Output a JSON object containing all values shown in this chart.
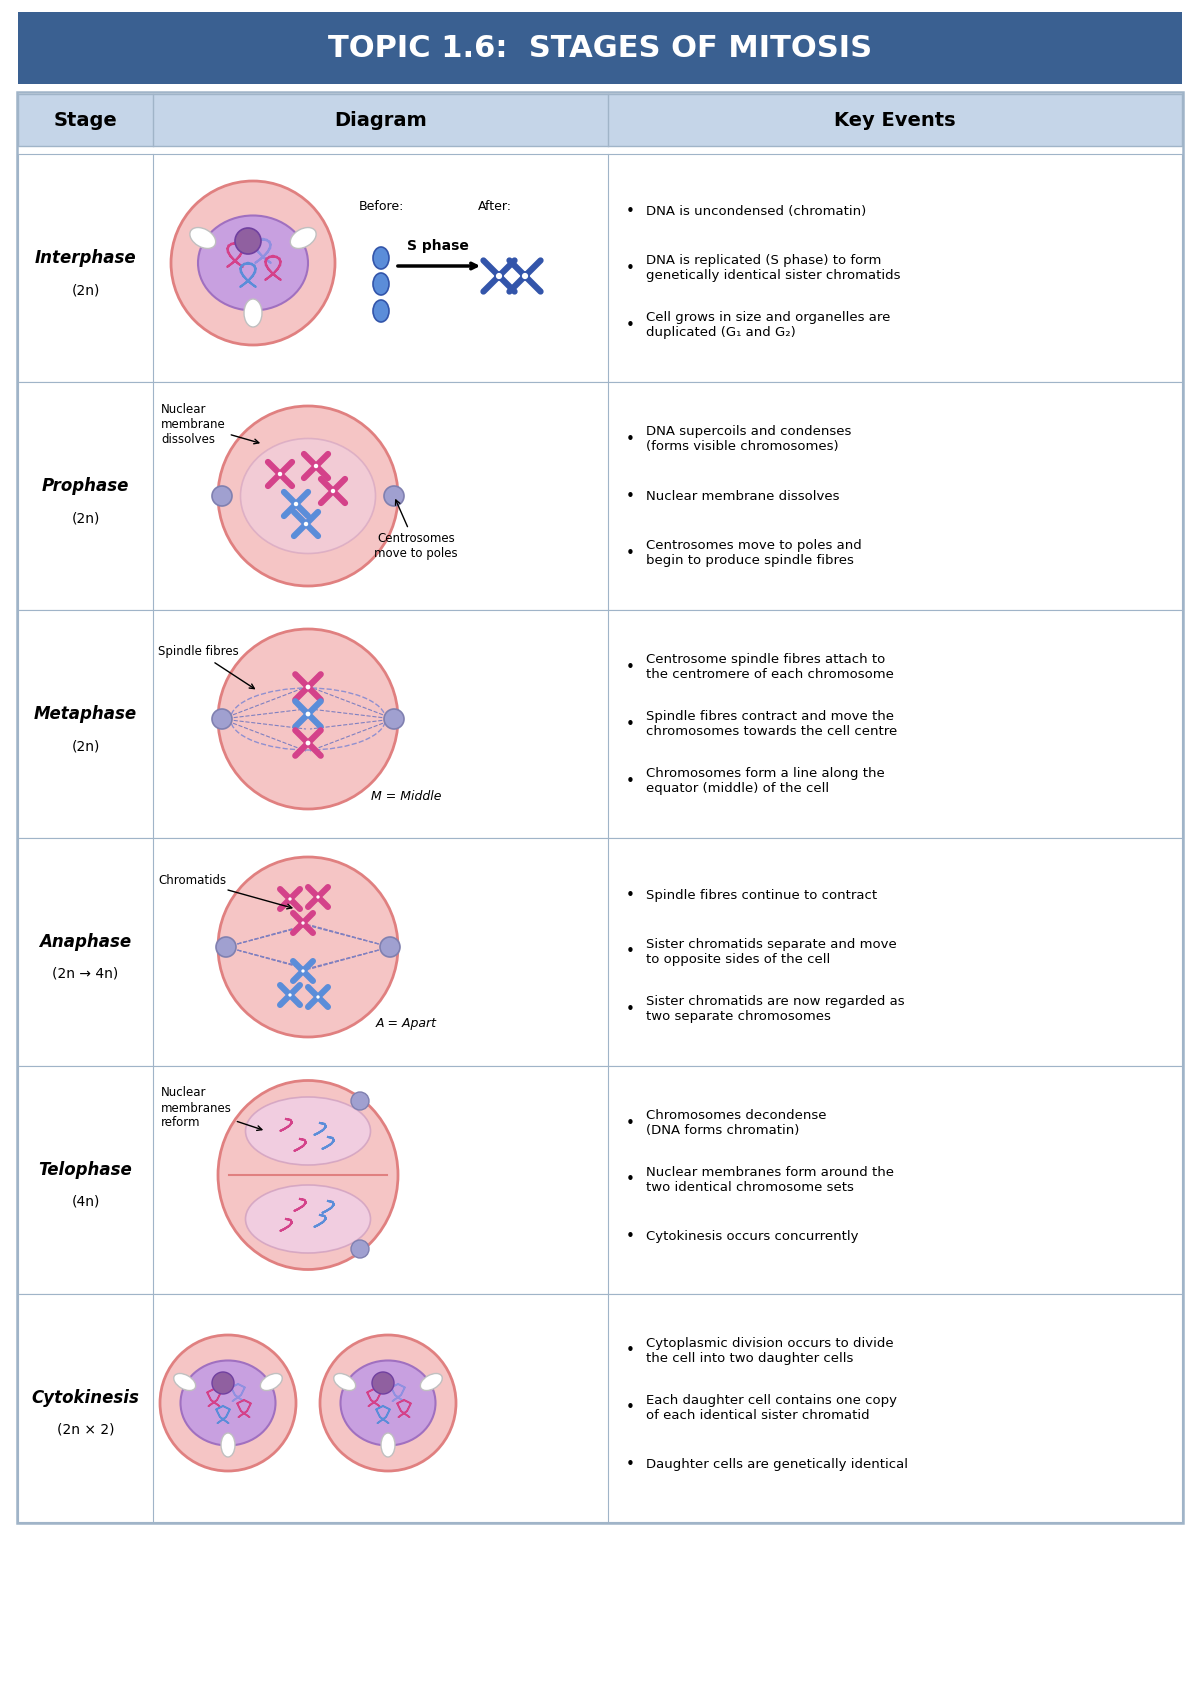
{
  "title": "TOPIC 1.6:  STAGES OF MITOSIS",
  "title_bg": "#3a6091",
  "title_color": "white",
  "header_bg": "#c5d5e8",
  "row_bg": "white",
  "border_color": "#a0b4c8",
  "col_headers": [
    "Stage",
    "Diagram",
    "Key Events"
  ],
  "stages": [
    {
      "name": "Interphase",
      "ploidy": "(2n)",
      "key_events": [
        "DNA is uncondensed (chromatin)",
        "DNA is replicated (S phase) to form\ngenetically identical sister chromatids",
        "Cell grows in size and organelles are\nduplicated (G₁ and G₂)"
      ]
    },
    {
      "name": "Prophase",
      "ploidy": "(2n)",
      "key_events": [
        "DNA supercoils and condenses\n(forms visible chromosomes)",
        "Nuclear membrane dissolves",
        "Centrosomes move to poles and\nbegin to produce spindle fibres"
      ]
    },
    {
      "name": "Metaphase",
      "ploidy": "(2n)",
      "key_events": [
        "Centrosome spindle fibres attach to\nthe centromere of each chromosome",
        "Spindle fibres contract and move the\nchromosomes towards the cell centre",
        "Chromosomes form a line along the\nequator (middle) of the cell"
      ]
    },
    {
      "name": "Anaphase",
      "ploidy": "(2n → 4n)",
      "key_events": [
        "Spindle fibres continue to contract",
        "Sister chromatids separate and move\nto opposite sides of the cell",
        "Sister chromatids are now regarded as\ntwo separate chromosomes"
      ]
    },
    {
      "name": "Telophase",
      "ploidy": "(4n)",
      "key_events": [
        "Chromosomes decondense\n(DNA forms chromatin)",
        "Nuclear membranes form around the\ntwo identical chromosome sets",
        "Cytokinesis occurs concurrently"
      ]
    },
    {
      "name": "Cytokinesis",
      "ploidy": "(2n × 2)",
      "key_events": [
        "Cytoplasmic division occurs to divide\nthe cell into two daughter cells",
        "Each daughter cell contains one copy\nof each identical sister chromatid",
        "Daughter cells are genetically identical"
      ]
    }
  ]
}
